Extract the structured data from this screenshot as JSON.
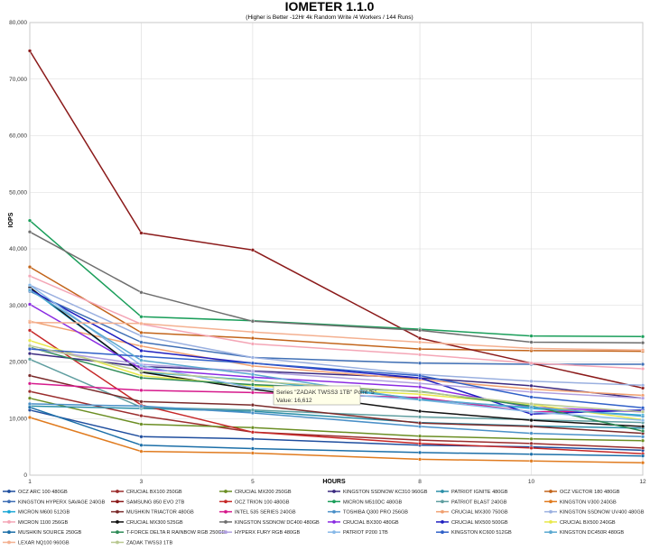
{
  "chart_data": {
    "type": "line",
    "title": "IOMETER 1.1.0",
    "subtitle": "(Higher is Better -12Hr 4k Random Write /4 Workers / 144 Runs)",
    "xlabel": "HOURS",
    "ylabel": "IOPS",
    "x": [
      1,
      3,
      5,
      8,
      10,
      12
    ],
    "ylim": [
      0,
      80000
    ],
    "yticks": [
      "0",
      "10,000",
      "20,000",
      "30,000",
      "40,000",
      "50,000",
      "60,000",
      "70,000",
      "80,000"
    ],
    "grid": true,
    "legend_position": "bottom",
    "tooltip": {
      "line1": "Series \"ZADAK TWSS3 1TB\" Point \"5\"",
      "line2": "Value: 16,612"
    },
    "series": [
      {
        "name": "OCZ ARC 100 480GB",
        "color": "#1f4e9e",
        "values": [
          11500,
          6800,
          6400,
          5300,
          5000,
          4400
        ]
      },
      {
        "name": "CRUCIAL BX100 250GB",
        "color": "#9b2d2d",
        "values": [
          14800,
          10500,
          7600,
          6200,
          5600,
          4800
        ]
      },
      {
        "name": "CRUCIAL MX200 250GB",
        "color": "#6b8e23",
        "values": [
          13600,
          9000,
          8400,
          6900,
          6400,
          6100
        ]
      },
      {
        "name": "KINGSTON SSDNOW KC310 960GB",
        "color": "#3b2a80",
        "values": [
          21500,
          19200,
          18400,
          17200,
          15800,
          13600
        ]
      },
      {
        "name": "PATRIOT IGNITE 480GB",
        "color": "#2a8fa8",
        "values": [
          12200,
          11800,
          11300,
          9300,
          8700,
          8300
        ]
      },
      {
        "name": "OCZ VECTOR 180 480GB",
        "color": "#c2641a",
        "values": [
          36800,
          25200,
          24200,
          22300,
          22000,
          21900
        ]
      },
      {
        "name": "KINGSTON HYPERX SAVAGE 240GB",
        "color": "#3f6fb5",
        "values": [
          32500,
          23500,
          20800,
          19800,
          19600,
          19600
        ]
      },
      {
        "name": "SAMSUNG 850 EVO 2TB",
        "color": "#8b1a1a",
        "values": [
          75000,
          42800,
          39800,
          24200,
          19800,
          15400
        ]
      },
      {
        "name": "OCZ TRION 100 480GB",
        "color": "#c62828",
        "values": [
          25600,
          12400,
          7600,
          5600,
          4800,
          3800
        ]
      },
      {
        "name": "MICRON M510DC 480GB",
        "color": "#1a9e5a",
        "values": [
          45000,
          28000,
          27300,
          25800,
          24600,
          24500
        ]
      },
      {
        "name": "PATRIOT BLAST 240GB",
        "color": "#5f9ea0",
        "values": [
          20500,
          12000,
          11500,
          10300,
          9800,
          9300
        ]
      },
      {
        "name": "KINGSTON V300 240GB",
        "color": "#e07b1f",
        "values": [
          10200,
          4200,
          3900,
          2800,
          2500,
          2200
        ]
      },
      {
        "name": "MICRON M600 512GB",
        "color": "#1aa6d6",
        "values": [
          33000,
          18200,
          16800,
          13500,
          11800,
          10600
        ]
      },
      {
        "name": "MUSHKIN TRIACTOR 480GB",
        "color": "#7a2a2a",
        "values": [
          17600,
          13000,
          12400,
          9200,
          8600,
          7400
        ]
      },
      {
        "name": "INTEL 535 SERIES 240GB",
        "color": "#d6198c",
        "values": [
          16200,
          15000,
          14600,
          13700,
          11200,
          11400
        ]
      },
      {
        "name": "TOSHIBA Q300 PRO 256GB",
        "color": "#4a90c8",
        "values": [
          12600,
          12200,
          11000,
          8600,
          7400,
          6800
        ]
      },
      {
        "name": "CRUCIAL MX300 750GB",
        "color": "#f0a070",
        "values": [
          27200,
          22800,
          19300,
          16900,
          15200,
          14100
        ]
      },
      {
        "name": "KINGSTON SSDNOW UV400 480GB",
        "color": "#9ab0e0",
        "values": [
          33600,
          24600,
          20800,
          17800,
          16600,
          15900
        ]
      },
      {
        "name": "MICRON 1100 256GB",
        "color": "#f4a6b6",
        "values": [
          35200,
          26700,
          23200,
          21300,
          19800,
          18800
        ]
      },
      {
        "name": "CRUCIAL MX300 525GB",
        "color": "#111111",
        "values": [
          33200,
          18200,
          15200,
          11300,
          9700,
          8600
        ]
      },
      {
        "name": "KINGSTON SSDNOW DC400 480GB",
        "color": "#6e6e6e",
        "values": [
          43000,
          32300,
          27200,
          25600,
          23500,
          23400
        ]
      },
      {
        "name": "CRUCIAL BX300 480GB",
        "color": "#8a2be2",
        "values": [
          30200,
          18800,
          17300,
          15600,
          12000,
          11200
        ]
      },
      {
        "name": "CRUCIAL MX500 500GB",
        "color": "#2020c0",
        "values": [
          32800,
          22000,
          19800,
          17200,
          10800,
          11500
        ]
      },
      {
        "name": "CRUCIAL BX500 240GB",
        "color": "#e8e84a",
        "values": [
          23800,
          17600,
          15800,
          14300,
          12500,
          9800
        ]
      },
      {
        "name": "MUSHKIN SOURCE 250GB",
        "color": "#1c6fa8",
        "values": [
          12000,
          5300,
          4700,
          4000,
          3700,
          3400
        ]
      },
      {
        "name": "T-FORCE DELTA R RAINBOW RGB 250GB",
        "color": "#2e8b57",
        "values": [
          22600,
          17200,
          16000,
          14800,
          12200,
          7800
        ]
      },
      {
        "name": "HYPERX FURY RGB 480GB",
        "color": "#b0a0e0",
        "values": [
          22400,
          19600,
          18300,
          16200,
          14700,
          13600
        ]
      },
      {
        "name": "PATRIOT P200 1TB",
        "color": "#87b9e8",
        "values": [
          33600,
          19400,
          15400,
          13300,
          11200,
          9700
        ]
      },
      {
        "name": "KINGSTON KC600 512GB",
        "color": "#3060c8",
        "values": [
          22300,
          21000,
          19800,
          17600,
          13800,
          11900
        ]
      },
      {
        "name": "KINGSTON DC450R 480GB",
        "color": "#5aa8d0",
        "values": [
          32700,
          20300,
          17800,
          13300,
          12000,
          10400
        ]
      },
      {
        "name": "LEXAR NQ100 960GB",
        "color": "#f4b090",
        "values": [
          27000,
          26800,
          25300,
          23500,
          22400,
          22100
        ]
      },
      {
        "name": "ZADAK TWSS3 1TB",
        "color": "#b8c890",
        "values": [
          22900,
          18400,
          16612,
          14700,
          12600,
          11200
        ]
      }
    ]
  }
}
